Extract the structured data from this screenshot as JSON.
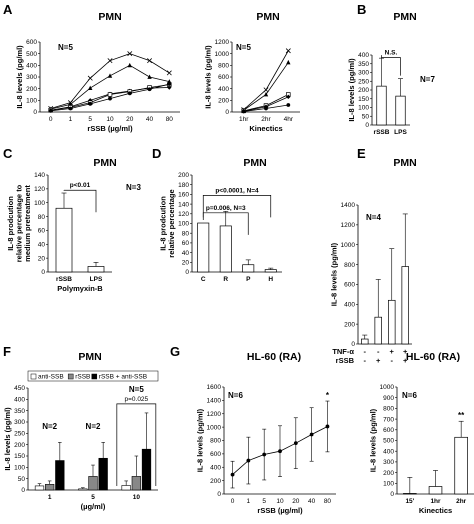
{
  "chart_data": [
    {
      "id": "A1",
      "panel_letter": "A",
      "type": "line",
      "title": "PMN",
      "n_label": "N=5",
      "xlabel": "rSSB (µg/ml)",
      "ylabel": "IL-8 levels (pg/ml)",
      "ylim": [
        0,
        600
      ],
      "yticks": [
        "0",
        "100",
        "200",
        "300",
        "400",
        "500",
        "600"
      ],
      "categories": [
        "0",
        "1",
        "5",
        "10",
        "20",
        "40",
        "80"
      ],
      "series": [
        {
          "marker": "x",
          "values": [
            30,
            80,
            290,
            440,
            500,
            440,
            335
          ]
        },
        {
          "marker": "triangle",
          "values": [
            25,
            65,
            205,
            310,
            400,
            300,
            260
          ]
        },
        {
          "marker": "diamond",
          "values": [
            15,
            45,
            100,
            155,
            180,
            205,
            210
          ]
        },
        {
          "marker": "square",
          "values": [
            15,
            40,
            80,
            150,
            175,
            210,
            235
          ]
        },
        {
          "marker": "circle",
          "values": [
            10,
            30,
            70,
            115,
            160,
            195,
            240
          ]
        }
      ]
    },
    {
      "id": "A2",
      "panel_letter": "",
      "type": "line",
      "title": "PMN",
      "n_label": "N=5",
      "xlabel": "Kinectics",
      "ylabel": "IL-8 levels (pg/ml)",
      "ylim": [
        0,
        1200
      ],
      "yticks": [
        "0",
        "200",
        "400",
        "600",
        "800",
        "1000",
        "1200"
      ],
      "categories": [
        "1hr",
        "2hr",
        "4hr"
      ],
      "series": [
        {
          "marker": "x",
          "values": [
            40,
            380,
            1050
          ]
        },
        {
          "marker": "triangle",
          "values": [
            30,
            300,
            850
          ]
        },
        {
          "marker": "square",
          "values": [
            20,
            110,
            300
          ]
        },
        {
          "marker": "diamond",
          "values": [
            15,
            90,
            260
          ]
        },
        {
          "marker": "circle",
          "values": [
            10,
            60,
            120
          ]
        }
      ]
    },
    {
      "id": "B",
      "panel_letter": "B",
      "type": "bar",
      "title": "PMN",
      "n_label": "N=7",
      "xlabel": "",
      "ylabel": "IL-8 levels (pg/ml)",
      "ylim": [
        0,
        400
      ],
      "yticks": [
        "0",
        "50",
        "100",
        "150",
        "200",
        "250",
        "300",
        "350",
        "400"
      ],
      "categories": [
        "rSSB",
        "LPS"
      ],
      "values": [
        222,
        165
      ],
      "errors": [
        160,
        100
      ],
      "brackets": [
        {
          "from": 0,
          "to": 1,
          "level": 385,
          "label": "N.S."
        }
      ]
    },
    {
      "id": "C",
      "panel_letter": "C",
      "type": "bar",
      "title": "PMN",
      "n_label": "N=3",
      "xlabel": "Polymyxin-B",
      "ylabel": [
        "IL-8 prodcution",
        "relative percentage to",
        "medium pretreatment"
      ],
      "ylim": [
        0,
        140
      ],
      "yticks": [
        "0",
        "20",
        "40",
        "60",
        "80",
        "100",
        "120",
        "140"
      ],
      "categories": [
        "rSSB",
        "LPS"
      ],
      "values": [
        92,
        8
      ],
      "errors": [
        22,
        6
      ],
      "brackets": [
        {
          "from": 0,
          "to": 1,
          "level": 118,
          "label": "p<0.01"
        }
      ]
    },
    {
      "id": "D",
      "panel_letter": "D",
      "type": "bar",
      "title": "PMN",
      "n_label": "",
      "xlabel": "",
      "ylabel": [
        "IL-8 prodcution",
        "relative percentage"
      ],
      "ylim": [
        0,
        200
      ],
      "yticks": [
        "0",
        "20",
        "40",
        "60",
        "80",
        "100",
        "120",
        "140",
        "160",
        "180",
        "200"
      ],
      "categories": [
        "C",
        "R",
        "P",
        "H"
      ],
      "values": [
        101,
        95,
        15,
        5
      ],
      "errors": [
        0,
        30,
        10,
        3
      ],
      "brackets": [
        {
          "from": 0,
          "to": 3,
          "level": 158,
          "label": "p<0.0001, N=4"
        },
        {
          "from": 0,
          "to": 2,
          "level": 122,
          "label": "p=0.006, N=3"
        }
      ]
    },
    {
      "id": "E",
      "panel_letter": "E",
      "type": "bar",
      "title": "PMN",
      "n_label": "N=4",
      "xlabel": "",
      "ylabel": "IL-8 levels (pg/ml)",
      "ylim": [
        0,
        1400
      ],
      "yticks": [
        "0",
        "200",
        "400",
        "600",
        "800",
        "1000",
        "1200",
        "1400"
      ],
      "categories": [
        "",
        "",
        "",
        ""
      ],
      "values": [
        50,
        270,
        440,
        780
      ],
      "errors": [
        40,
        380,
        520,
        530
      ],
      "condition_rows": [
        {
          "label": "TNF-α",
          "marks": [
            "-",
            "-",
            "+",
            "+"
          ]
        },
        {
          "label": "rSSB",
          "marks": [
            "-",
            "+",
            "-",
            "+"
          ]
        }
      ]
    },
    {
      "id": "F",
      "panel_letter": "F",
      "type": "bar",
      "title": "PMN",
      "n_label": "",
      "xlabel": "(µg/ml)",
      "ylabel": "IL-8 levels (pg/ml)",
      "ylim": [
        0,
        450
      ],
      "yticks": [
        "0",
        "50",
        "100",
        "150",
        "200",
        "250",
        "300",
        "350",
        "400",
        "450"
      ],
      "categories": [
        "1",
        "5",
        "10"
      ],
      "legend": "top",
      "series": [
        {
          "name": "anti-SSB",
          "color": "#ffffff",
          "values": [
            18,
            5,
            20
          ],
          "errors": [
            10,
            5,
            20
          ]
        },
        {
          "name": "rSSB",
          "color": "#888888",
          "values": [
            25,
            60,
            60
          ],
          "errors": [
            15,
            50,
            90
          ]
        },
        {
          "name": "rSSB + anti-SSB",
          "color": "#000000",
          "values": [
            130,
            140,
            180
          ],
          "errors": [
            80,
            70,
            160
          ]
        }
      ],
      "annotations": [
        {
          "group": 0,
          "text": "N=2"
        },
        {
          "group": 1,
          "text": "N=2"
        }
      ],
      "group_bracket": {
        "group": 2,
        "n_label": "N=5",
        "p_label": "p=0.025"
      }
    },
    {
      "id": "G1",
      "panel_letter": "G",
      "type": "line",
      "title": "HL-60 (RA)",
      "n_label": "N=6",
      "xlabel": "rSSB (µg/ml)",
      "ylabel": "IL-8 levels (pg/ml)",
      "ylim": [
        0,
        1600
      ],
      "yticks": [
        "0",
        "200",
        "400",
        "600",
        "800",
        "1000",
        "1200",
        "1400",
        "1600"
      ],
      "categories": [
        "0",
        "1",
        "5",
        "10",
        "20",
        "40",
        "80"
      ],
      "series": [
        {
          "marker": "circle",
          "values": [
            290,
            500,
            590,
            640,
            760,
            890,
            1010
          ],
          "errors": [
            200,
            350,
            380,
            380,
            380,
            400,
            380
          ]
        }
      ],
      "point_annotations": [
        {
          "index": 6,
          "text": "*"
        }
      ]
    },
    {
      "id": "G2",
      "panel_letter": "",
      "type": "bar",
      "title": "HL-60 (RA)",
      "n_label": "N=6",
      "xlabel": "Kinectics",
      "ylabel": "IL-8 levels (pg/ml)",
      "ylim": [
        0,
        1000
      ],
      "yticks": [
        "0",
        "100",
        "200",
        "300",
        "400",
        "500",
        "600",
        "700",
        "800",
        "900",
        "1000"
      ],
      "categories": [
        "15'",
        "1hr",
        "2hr"
      ],
      "values": [
        5,
        70,
        530
      ],
      "errors": [
        150,
        150,
        150
      ],
      "bar_annotations": [
        {
          "index": 2,
          "text": "**"
        }
      ]
    }
  ]
}
